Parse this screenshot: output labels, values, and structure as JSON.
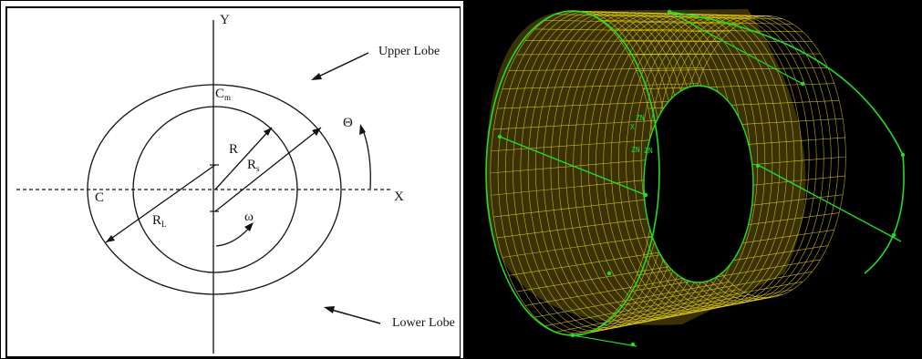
{
  "left_diagram": {
    "axis_y_label": "Y",
    "axis_x_label": "X",
    "upper_lobe_label": "Upper Lobe",
    "lower_lobe_label": "Lower Lobe",
    "cm_main": "C",
    "cm_sub": "m",
    "c_label": "C",
    "r_label": "R",
    "rs_main": "R",
    "rs_sub": "s",
    "rl_main": "R",
    "rl_sub": "L",
    "theta_label": "Θ",
    "omega_label": "ω"
  },
  "right_mesh": {
    "background": "#000000",
    "mesh_color": "#e8d21a",
    "edge_color": "#22dd22",
    "node_labels": [
      "ZN",
      "X",
      "ZN",
      "ZN"
    ]
  },
  "colors": {
    "line": "#111111",
    "frame": "#000000"
  }
}
